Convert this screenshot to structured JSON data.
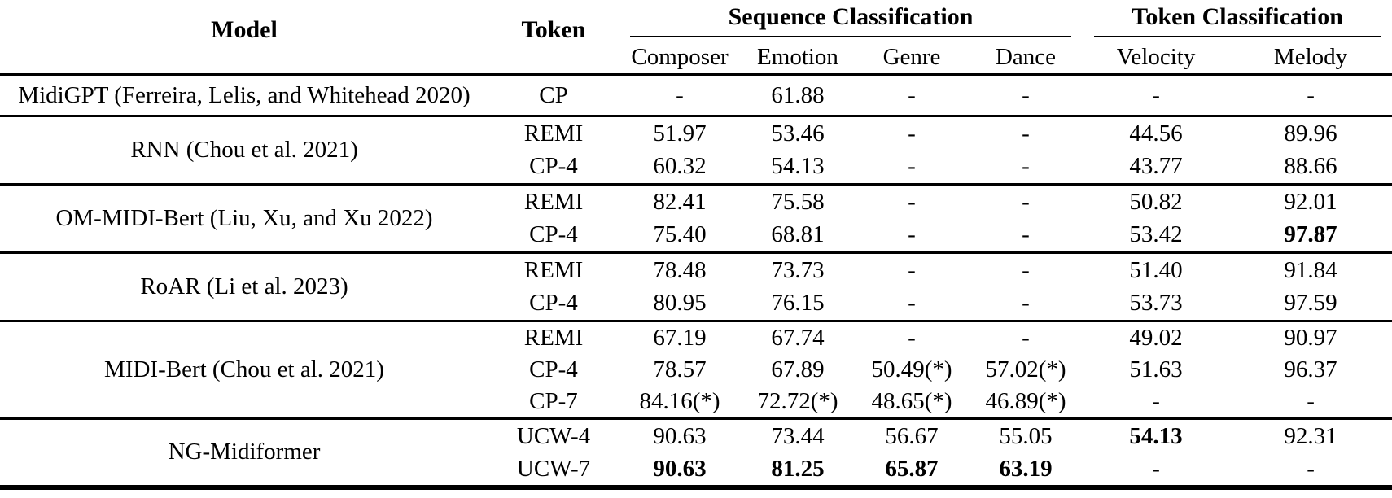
{
  "page": {
    "background": "#ffffff",
    "text_color": "#000000",
    "rule_color": "#000000"
  },
  "table": {
    "header": {
      "model_label": "Model",
      "token_label": "Token",
      "groups": [
        {
          "label": "Sequence Classification",
          "cols": [
            "Composer",
            "Emotion",
            "Genre",
            "Dance"
          ]
        },
        {
          "label": "Token Classification",
          "cols": [
            "Velocity",
            "Melody"
          ]
        }
      ]
    },
    "rows": [
      {
        "model": "MidiGPT (Ferreira, Lelis, and Whitehead 2020)",
        "lines": [
          {
            "token": "CP",
            "values": [
              {
                "text": "-"
              },
              {
                "text": "61.88"
              },
              {
                "text": "-"
              },
              {
                "text": "-"
              },
              {
                "text": "-"
              },
              {
                "text": "-"
              }
            ]
          }
        ]
      },
      {
        "model": "RNN (Chou et al. 2021)",
        "lines": [
          {
            "token": "REMI",
            "values": [
              {
                "text": "51.97"
              },
              {
                "text": "53.46"
              },
              {
                "text": "-"
              },
              {
                "text": "-"
              },
              {
                "text": "44.56"
              },
              {
                "text": "89.96"
              }
            ]
          },
          {
            "token": "CP-4",
            "values": [
              {
                "text": "60.32"
              },
              {
                "text": "54.13"
              },
              {
                "text": "-"
              },
              {
                "text": "-"
              },
              {
                "text": "43.77"
              },
              {
                "text": "88.66"
              }
            ]
          }
        ]
      },
      {
        "model": "OM-MIDI-Bert (Liu, Xu, and Xu 2022)",
        "lines": [
          {
            "token": "REMI",
            "values": [
              {
                "text": "82.41"
              },
              {
                "text": "75.58"
              },
              {
                "text": "-"
              },
              {
                "text": "-"
              },
              {
                "text": "50.82"
              },
              {
                "text": "92.01"
              }
            ]
          },
          {
            "token": "CP-4",
            "values": [
              {
                "text": "75.40"
              },
              {
                "text": "68.81"
              },
              {
                "text": "-"
              },
              {
                "text": "-"
              },
              {
                "text": "53.42"
              },
              {
                "text": "97.87",
                "bold": true
              }
            ]
          }
        ]
      },
      {
        "model": "RoAR (Li et al. 2023)",
        "lines": [
          {
            "token": "REMI",
            "values": [
              {
                "text": "78.48"
              },
              {
                "text": "73.73"
              },
              {
                "text": "-"
              },
              {
                "text": "-"
              },
              {
                "text": "51.40"
              },
              {
                "text": "91.84"
              }
            ]
          },
          {
            "token": "CP-4",
            "values": [
              {
                "text": "80.95"
              },
              {
                "text": "76.15"
              },
              {
                "text": "-"
              },
              {
                "text": "-"
              },
              {
                "text": "53.73"
              },
              {
                "text": "97.59"
              }
            ]
          }
        ]
      },
      {
        "model": "MIDI-Bert (Chou et al. 2021)",
        "lines": [
          {
            "token": "REMI",
            "values": [
              {
                "text": "67.19"
              },
              {
                "text": "67.74"
              },
              {
                "text": "-"
              },
              {
                "text": "-"
              },
              {
                "text": "49.02"
              },
              {
                "text": "90.97"
              }
            ]
          },
          {
            "token": "CP-4",
            "values": [
              {
                "text": "78.57"
              },
              {
                "text": "67.89"
              },
              {
                "text": "50.49(*)"
              },
              {
                "text": "57.02(*)"
              },
              {
                "text": "51.63"
              },
              {
                "text": "96.37"
              }
            ]
          },
          {
            "token": "CP-7",
            "values": [
              {
                "text": "84.16(*)"
              },
              {
                "text": "72.72(*)"
              },
              {
                "text": "48.65(*)"
              },
              {
                "text": "46.89(*)"
              },
              {
                "text": "-"
              },
              {
                "text": "-"
              }
            ]
          }
        ]
      },
      {
        "model": "NG-Midiformer",
        "lines": [
          {
            "token": "UCW-4",
            "values": [
              {
                "text": "90.63"
              },
              {
                "text": "73.44"
              },
              {
                "text": "56.67"
              },
              {
                "text": "55.05"
              },
              {
                "text": "54.13",
                "bold": true
              },
              {
                "text": "92.31"
              }
            ]
          },
          {
            "token": "UCW-7",
            "values": [
              {
                "text": "90.63",
                "bold": true
              },
              {
                "text": "81.25",
                "bold": true
              },
              {
                "text": "65.87",
                "bold": true
              },
              {
                "text": "63.19",
                "bold": true
              },
              {
                "text": "-"
              },
              {
                "text": "-"
              }
            ]
          }
        ]
      }
    ]
  }
}
